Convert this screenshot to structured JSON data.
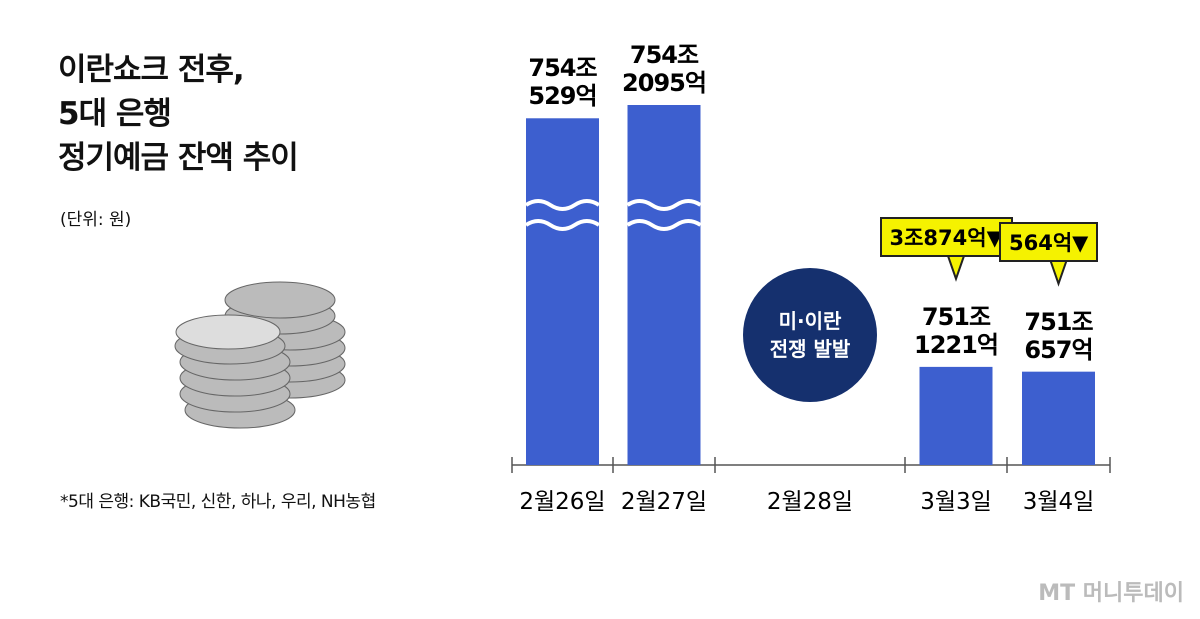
{
  "chart_data": {
    "type": "bar",
    "title": "이란쇼크 전후,\n5대 은행\n정기예금 잔액 추이",
    "subtitle": "(단위: 원)",
    "footnote": "*5대 은행: KB국민, 신한, 하나, 우리, NH농협",
    "source": "MT 머니투데이",
    "categories": [
      "2월26일",
      "2월27일",
      "2월28일",
      "3월3일",
      "3월4일"
    ],
    "values": [
      7540529,
      7542095,
      null,
      7511221,
      7510657
    ],
    "value_labels": [
      "754조\n529억",
      "754조\n2095억",
      null,
      "751조\n1221억",
      "751조\n657억"
    ],
    "color": "#3d5fcf",
    "annotations": [
      {
        "category": "2월28일",
        "text": "미·이란\n전쟁 발발"
      },
      {
        "category": "3월3일",
        "text": "3조874억▼"
      },
      {
        "category": "3월4일",
        "text": "564억▼"
      }
    ]
  }
}
